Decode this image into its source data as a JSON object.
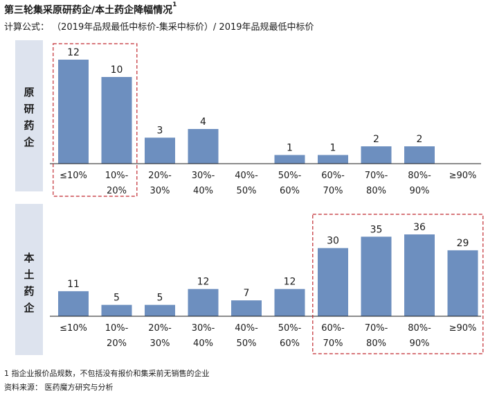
{
  "title": "第三轮集采原研药企/本土药企降幅情况",
  "title_superscript": "1",
  "formula": "计算公式：  （2019年品规最低中标价-集采中标价）/ 2019年品规最低中标价",
  "footnote": "1 指企业报价品规数，不包括没有报价和集采前无销售的企业",
  "source": "资料来源：  医药魔方研究与分析",
  "colors": {
    "bar": "#6d8fbf",
    "panel_label_bg": "#dde3ee",
    "highlight_border": "#c0272d",
    "axis": "#1a1a1a"
  },
  "chart_data": [
    {
      "type": "bar",
      "panel_label": [
        "原",
        "研",
        "药",
        "企"
      ],
      "categories": [
        [
          "≤10%"
        ],
        [
          "10%-",
          "20%"
        ],
        [
          "20%-",
          "30%"
        ],
        [
          "30%-",
          "40%"
        ],
        [
          "40%-",
          "50%"
        ],
        [
          "50%-",
          "60%"
        ],
        [
          "60%-",
          "70%"
        ],
        [
          "70%-",
          "80%"
        ],
        [
          "80%-",
          "90%"
        ],
        [
          "≥90%"
        ]
      ],
      "values": [
        12,
        10,
        3,
        4,
        0,
        1,
        1,
        2,
        2,
        0
      ],
      "value_labels": [
        "12",
        "10",
        "3",
        "4",
        "",
        "1",
        "1",
        "2",
        "2",
        ""
      ],
      "highlight_range": [
        0,
        1
      ],
      "ylim": [
        0,
        12
      ]
    },
    {
      "type": "bar",
      "panel_label": [
        "本",
        "土",
        "药",
        "企"
      ],
      "categories": [
        [
          "≤10%"
        ],
        [
          "10%-",
          "20%"
        ],
        [
          "20%-",
          "30%"
        ],
        [
          "30%-",
          "40%"
        ],
        [
          "40%-",
          "50%"
        ],
        [
          "50%-",
          "60%"
        ],
        [
          "60%-",
          "70%"
        ],
        [
          "70%-",
          "80%"
        ],
        [
          "80%-",
          "90%"
        ],
        [
          "≥90%"
        ]
      ],
      "values": [
        11,
        5,
        5,
        12,
        7,
        12,
        30,
        35,
        36,
        29
      ],
      "value_labels": [
        "11",
        "5",
        "5",
        "12",
        "7",
        "12",
        "30",
        "35",
        "36",
        "29"
      ],
      "highlight_range": [
        6,
        9
      ],
      "ylim": [
        0,
        36
      ]
    }
  ]
}
